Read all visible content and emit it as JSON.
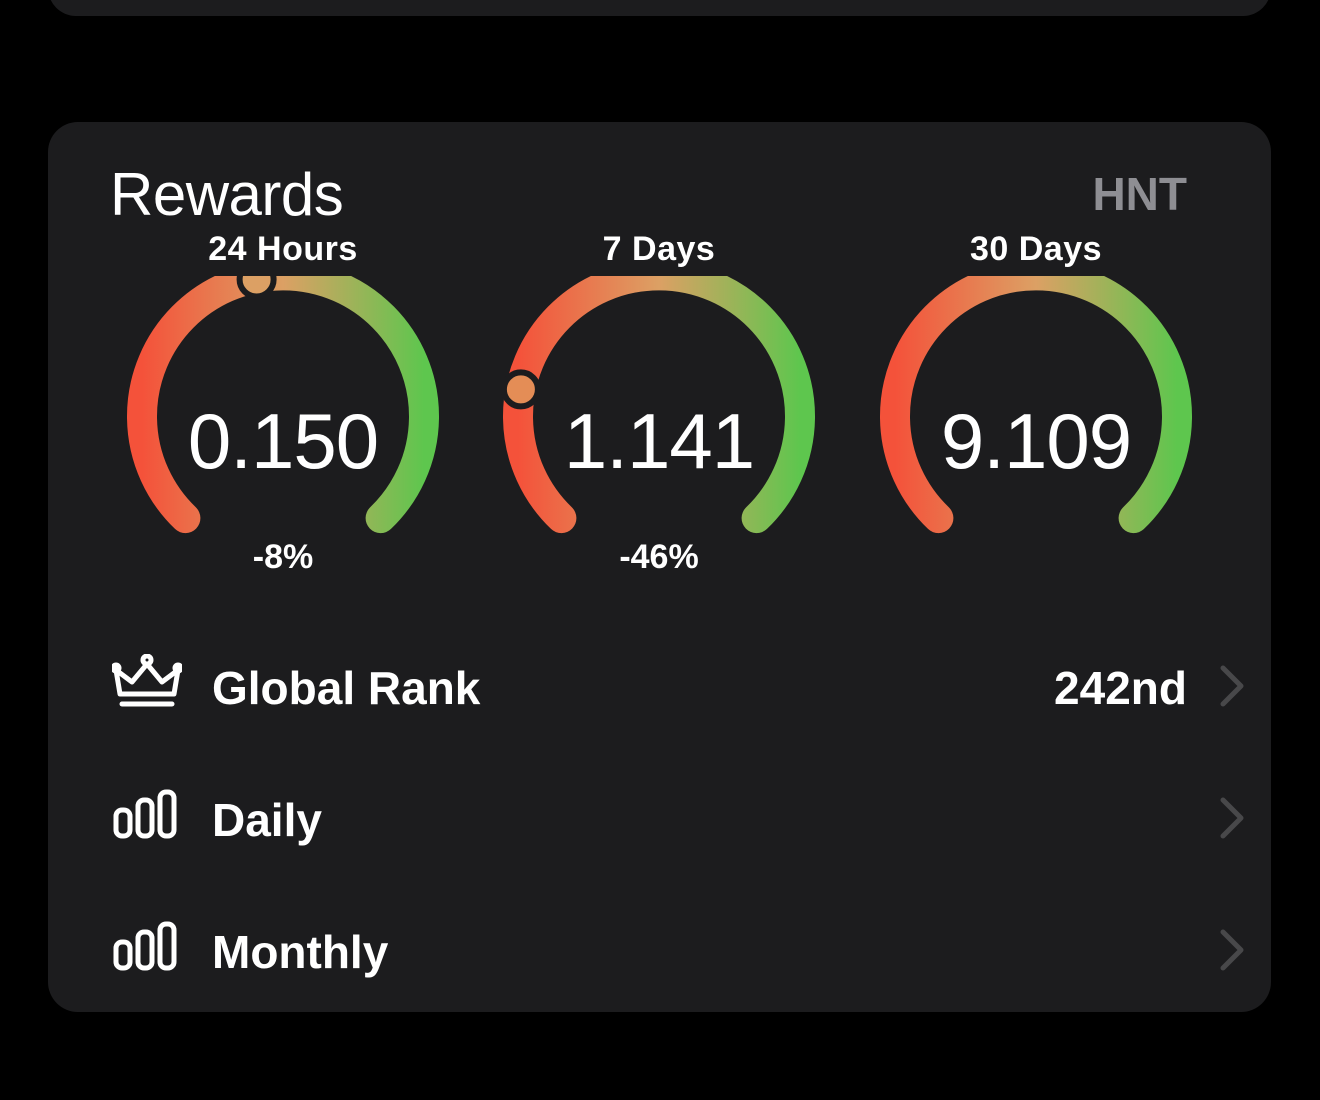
{
  "rewards": {
    "title": "Rewards",
    "currency": "HNT",
    "gauges": [
      {
        "label": "24 Hours",
        "value": "0.150",
        "change": "-8%",
        "level": 0.46
      },
      {
        "label": "7 Days",
        "value": "1.141",
        "change": "-46%",
        "level": 0.21
      },
      {
        "label": "30 Days",
        "value": "9.109",
        "change": "",
        "level": null
      }
    ],
    "gradient": {
      "start": "#f4523a",
      "mid": "#dca064",
      "end": "#5ec64e"
    },
    "rows": [
      {
        "label": "Global Rank",
        "value": "242nd",
        "icon": "crown-icon"
      },
      {
        "label": "Daily",
        "value": "",
        "icon": "bar-chart-icon"
      },
      {
        "label": "Monthly",
        "value": "",
        "icon": "bar-chart-icon"
      }
    ]
  },
  "colors": {
    "background": "#000000",
    "card": "#1c1c1e",
    "secondary_text": "#8e8e93",
    "chevron": "#48484a"
  }
}
